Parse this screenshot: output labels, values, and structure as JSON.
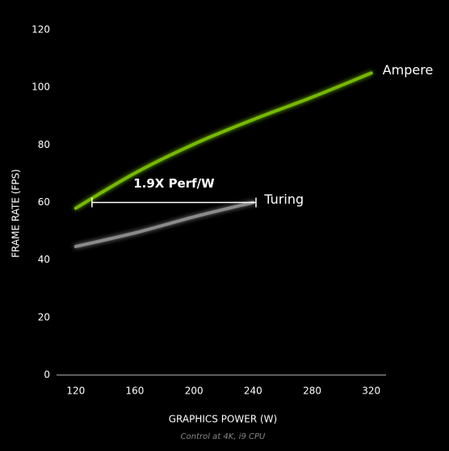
{
  "chart_data": {
    "type": "line",
    "ylabel": "FRAME RATE (FPS)",
    "xlabel": "GRAPHICS POWER (W)",
    "note": "Control at 4K, i9 CPU",
    "xlim": [
      107,
      330
    ],
    "ylim": [
      0,
      120
    ],
    "xticks": [
      120,
      160,
      200,
      240,
      280,
      320
    ],
    "yticks": [
      0,
      20,
      40,
      60,
      80,
      100,
      120
    ],
    "series": [
      {
        "name": "Ampere",
        "color": "#76b900",
        "x": [
          120,
          160,
          200,
          240,
          280,
          320
        ],
        "values": [
          58,
          70.2,
          80.3,
          88.8,
          96.6,
          105
        ]
      },
      {
        "name": "Turing",
        "color": "#8a8a8a",
        "x": [
          120,
          160,
          200,
          240
        ],
        "values": [
          44.7,
          49.4,
          55,
          60
        ]
      }
    ],
    "annotation": {
      "text": "1.9X Perf/W",
      "x": [
        131,
        242
      ],
      "y": 60
    }
  }
}
